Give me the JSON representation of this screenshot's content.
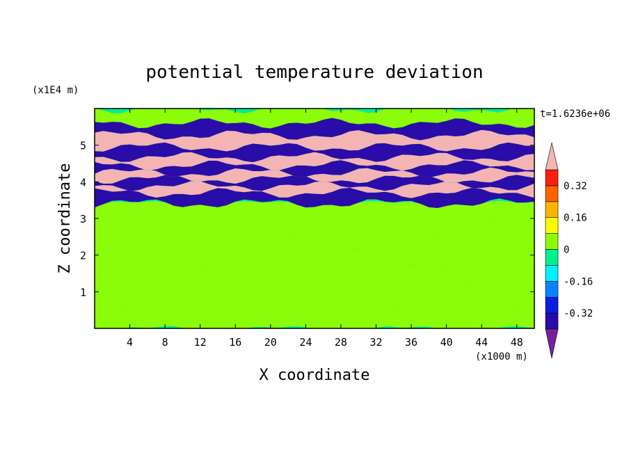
{
  "chart_data": {
    "type": "heatmap",
    "title": "potential temperature deviation",
    "xlabel": "X coordinate",
    "ylabel": "Z coordinate",
    "x_unit": "(x1000 m)",
    "y_unit": "(x1E4 m)",
    "time_label": "t=1.6236e+06",
    "xlim": [
      0,
      50
    ],
    "ylim": [
      0,
      6
    ],
    "x_ticks": [
      4,
      8,
      12,
      16,
      20,
      24,
      28,
      32,
      36,
      40,
      44,
      48
    ],
    "y_ticks": [
      1,
      2,
      3,
      4,
      5
    ],
    "x_tick_labels": [
      "4",
      "8",
      "12",
      "16",
      "20",
      "24",
      "28",
      "32",
      "36",
      "40",
      "44",
      "48"
    ],
    "y_tick_labels": [
      "1",
      "2",
      "3",
      "4",
      "5"
    ],
    "colorbar": {
      "levels": [
        -0.4,
        -0.32,
        -0.24,
        -0.16,
        -0.08,
        0,
        0.08,
        0.16,
        0.24,
        0.32,
        0.4
      ],
      "colors": [
        "#7a1fa0",
        "#2a0ca8",
        "#0a1ee0",
        "#0a82ff",
        "#00f0ff",
        "#00f090",
        "#8cfc08",
        "#fcfc00",
        "#fcb400",
        "#fc6400",
        "#fc2010",
        "#f4b4b4"
      ],
      "labels": [
        "0.32",
        "0.16",
        "0",
        "-0.16",
        "-0.32"
      ],
      "label_values": [
        0.32,
        0.16,
        0,
        -0.16,
        -0.32
      ]
    },
    "bands": [
      {
        "z": 0.4,
        "value": 0.04
      },
      {
        "z": 0.7,
        "value": 0.02
      },
      {
        "z": 1.1,
        "value": 0.03
      },
      {
        "z": 1.5,
        "value": 0.06
      },
      {
        "z": 1.9,
        "value": 0.05
      },
      {
        "z": 2.3,
        "value": 0.06
      },
      {
        "z": 2.8,
        "value": 0.05
      },
      {
        "z": 3.2,
        "value": 0.04
      },
      {
        "z": 3.62,
        "value": -0.4
      },
      {
        "z": 3.78,
        "value": 0.4
      },
      {
        "z": 4.0,
        "value": -0.4
      },
      {
        "z": 4.15,
        "value": 0.4
      },
      {
        "z": 4.35,
        "value": -0.4
      },
      {
        "z": 4.55,
        "value": 0.4
      },
      {
        "z": 4.8,
        "value": -0.4
      },
      {
        "z": 5.1,
        "value": 0.4
      },
      {
        "z": 5.45,
        "value": -0.4
      },
      {
        "z": 5.75,
        "value": 0.0
      }
    ]
  }
}
